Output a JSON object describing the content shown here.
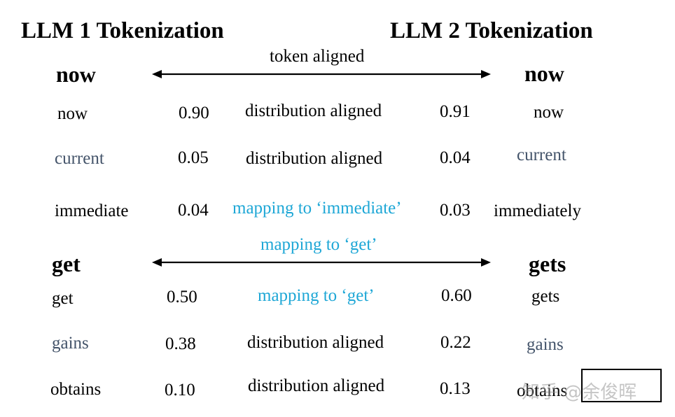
{
  "titles": {
    "left": "LLM 1 Tokenization",
    "right": "LLM 2 Tokenization"
  },
  "groups": [
    {
      "left_head": "now",
      "right_head": "now",
      "arrow_label": "token aligned",
      "rows": [
        {
          "left_word": "now",
          "left_prob": "0.90",
          "middle": "distribution aligned",
          "middle_style": "plain",
          "right_prob": "0.91",
          "right_word": "now",
          "word_style": "black"
        },
        {
          "left_word": "current",
          "left_prob": "0.05",
          "middle": "distribution aligned",
          "middle_style": "plain",
          "right_prob": "0.04",
          "right_word": "current",
          "word_style": "grey"
        },
        {
          "left_word": "immediate",
          "left_prob": "0.04",
          "middle": "mapping to ‘immediate’",
          "middle_style": "cyan",
          "right_prob": "0.03",
          "right_word": "immediately",
          "word_style": "black"
        }
      ]
    },
    {
      "left_head": "get",
      "right_head": "gets",
      "arrow_label": "mapping to ‘get’",
      "rows": [
        {
          "left_word": "get",
          "left_prob": "0.50",
          "middle": "mapping to ‘get’",
          "middle_style": "cyan",
          "right_prob": "0.60",
          "right_word": "gets",
          "word_style": "black"
        },
        {
          "left_word": "gains",
          "left_prob": "0.38",
          "middle": "distribution aligned",
          "middle_style": "plain",
          "right_prob": "0.22",
          "right_word": "gains",
          "word_style": "grey"
        },
        {
          "left_word": "obtains",
          "left_prob": "0.10",
          "middle": "distribution aligned",
          "middle_style": "plain",
          "right_prob": "0.13",
          "right_word": "obtains",
          "word_style": "black"
        }
      ]
    }
  ],
  "watermark": {
    "text": "知乎 @余俊晖"
  },
  "colors": {
    "highlight": "#1ea7d6",
    "muted": "#44546a",
    "text": "#000000"
  },
  "icons": {
    "arrows": "double-headed-arrow-icon"
  }
}
